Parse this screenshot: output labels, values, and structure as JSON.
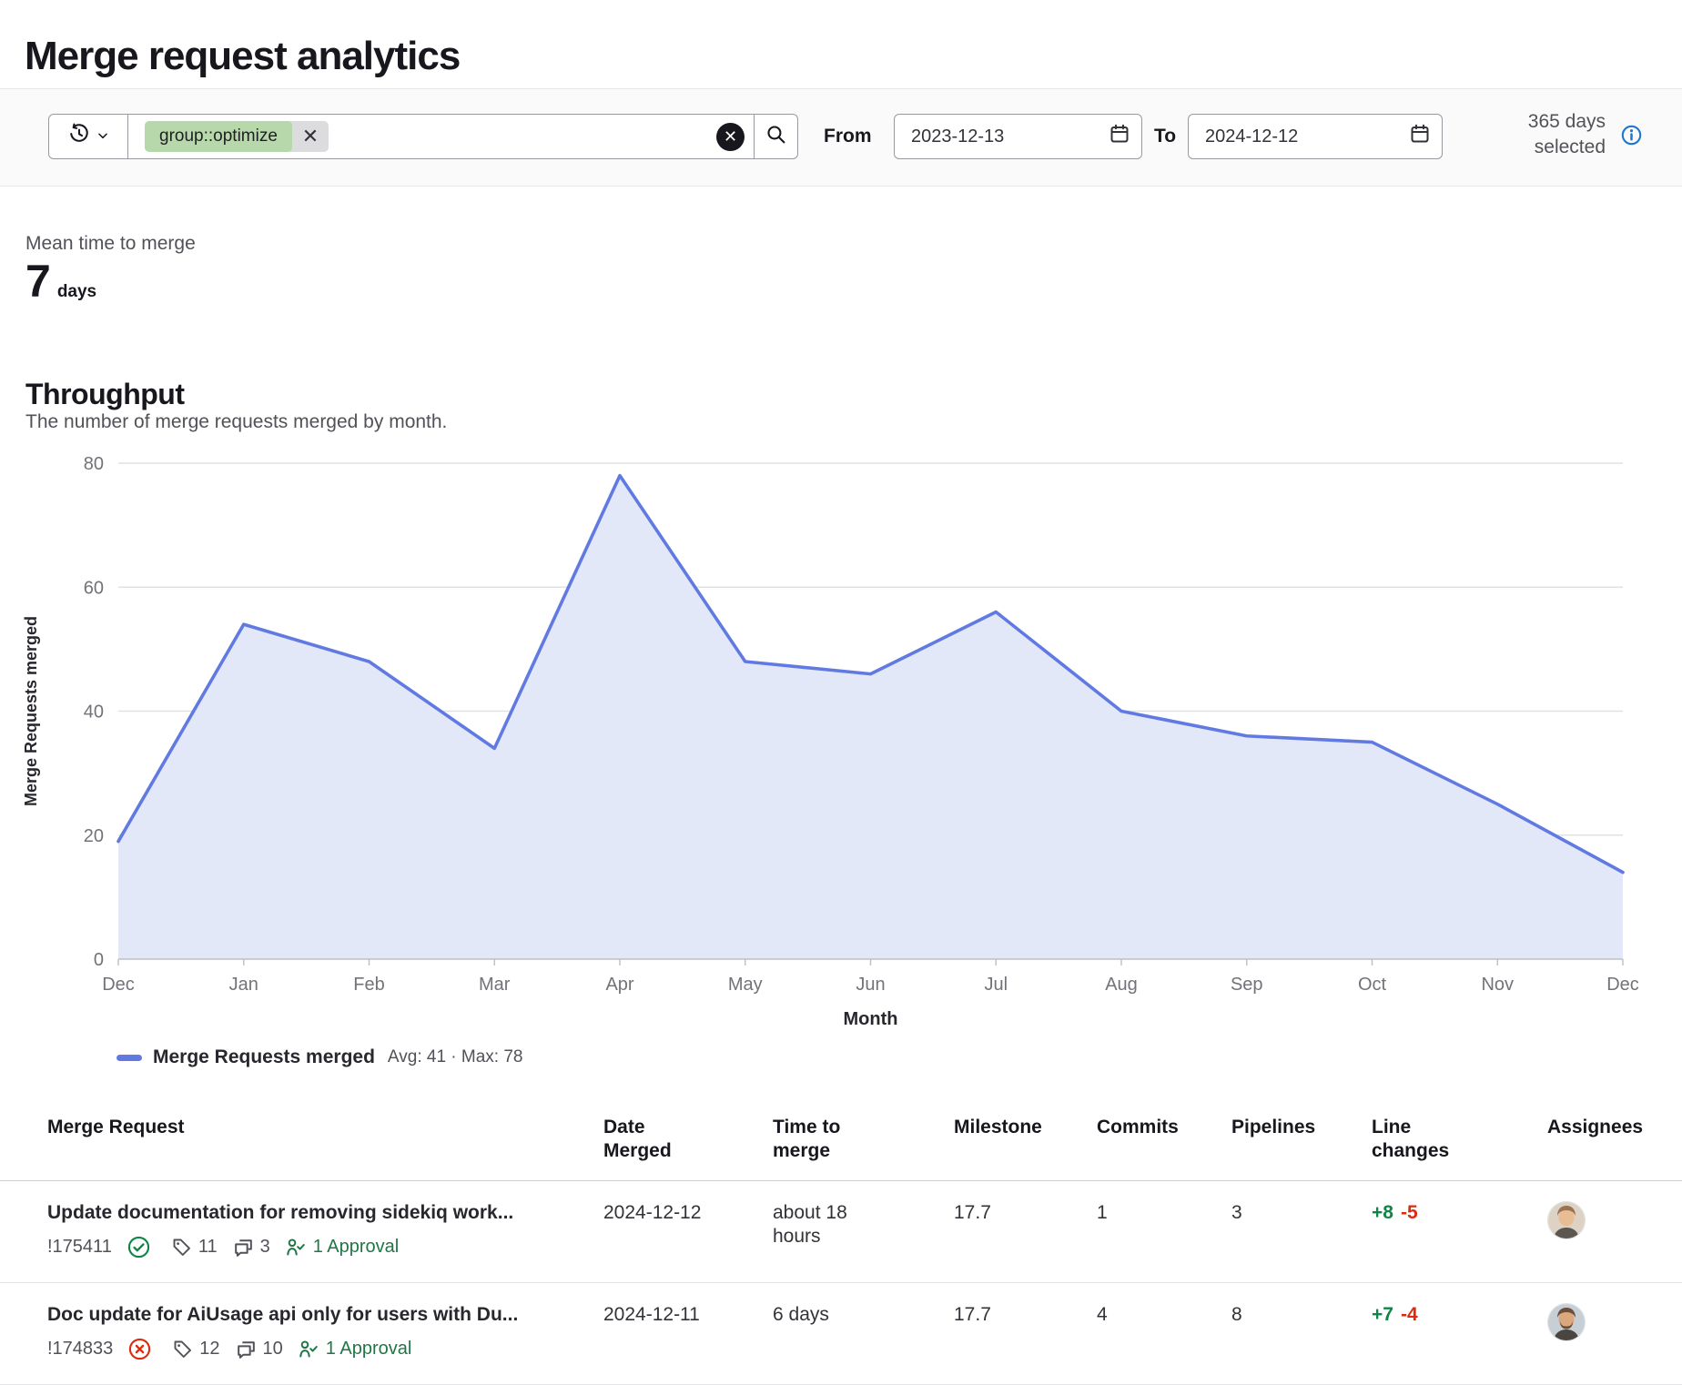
{
  "page": {
    "title": "Merge request analytics"
  },
  "filter_bar": {
    "token": {
      "label": "group::optimize"
    },
    "from": {
      "label": "From",
      "value": "2023-12-13"
    },
    "to": {
      "label": "To",
      "value": "2024-12-12"
    },
    "days_selected": "365 days selected"
  },
  "mean_time": {
    "label": "Mean time to merge",
    "value": "7",
    "unit": "days"
  },
  "throughput": {
    "heading": "Throughput",
    "description": "The number of merge requests merged by month."
  },
  "chart_data": {
    "type": "area",
    "x": [
      "Dec",
      "Jan",
      "Feb",
      "Mar",
      "Apr",
      "May",
      "Jun",
      "Jul",
      "Aug",
      "Sep",
      "Oct",
      "Nov",
      "Dec"
    ],
    "series": [
      {
        "name": "Merge Requests merged",
        "values": [
          19,
          54,
          48,
          34,
          78,
          48,
          46,
          56,
          40,
          36,
          35,
          25,
          14
        ]
      }
    ],
    "xlabel": "Month",
    "ylabel": "Merge Requests merged",
    "ylim": [
      0,
      80
    ],
    "yticks": [
      0,
      20,
      40,
      60,
      80
    ],
    "grid": true,
    "legend": {
      "position": "bottom",
      "label": "Merge Requests merged",
      "summary": "Avg: 41 · Max: 78"
    },
    "line_color": "#617ae2",
    "fill_color": "#e3e8f9"
  },
  "table": {
    "columns": [
      "Merge Request",
      "Date Merged",
      "Time to merge",
      "Milestone",
      "Commits",
      "Pipelines",
      "Line changes",
      "Assignees"
    ],
    "rows": [
      {
        "title": "Update documentation for removing sidekiq work...",
        "id": "!175411",
        "status": "success",
        "labels_count": "11",
        "comments_count": "3",
        "approvals": "1 Approval",
        "date_merged": "2024-12-12",
        "time_to_merge": "about 18 hours",
        "milestone": "17.7",
        "commits": "1",
        "pipelines": "3",
        "additions": "+8",
        "deletions": "-5"
      },
      {
        "title": "Doc update for AiUsage api only for users with Du...",
        "id": "!174833",
        "status": "failed",
        "labels_count": "12",
        "comments_count": "10",
        "approvals": "1 Approval",
        "date_merged": "2024-12-11",
        "time_to_merge": "6 days",
        "milestone": "17.7",
        "commits": "4",
        "pipelines": "8",
        "additions": "+7",
        "deletions": "-4"
      }
    ]
  }
}
